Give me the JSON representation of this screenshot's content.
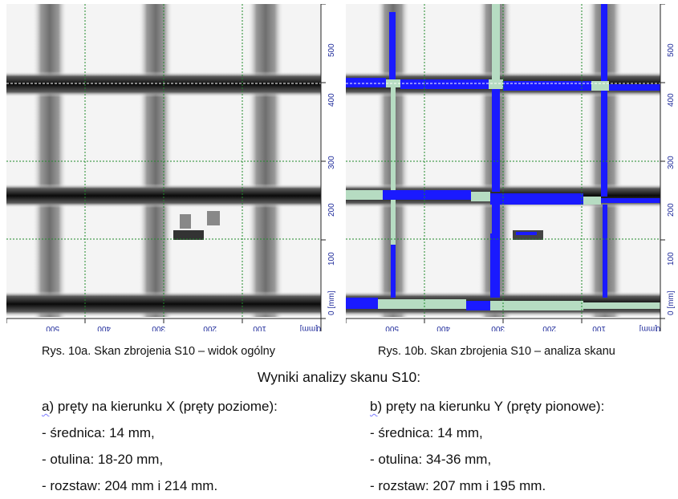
{
  "figures": [
    {
      "id": "a",
      "caption": "Rys. 10a. Skan zbrojenia S10 – widok ogólny",
      "y_ticks": [
        "0 [mm]",
        "100",
        "200",
        "300",
        "400",
        "500"
      ],
      "x_ticks": [
        "[mm]",
        "0",
        "100",
        "200",
        "300",
        "400",
        "500"
      ],
      "analysis_overlay": false
    },
    {
      "id": "b",
      "caption": "Rys. 10b. Skan zbrojenia S10 – analiza skanu",
      "y_ticks": [
        "0 [mm]",
        "100",
        "200",
        "300",
        "400",
        "500"
      ],
      "x_ticks": [
        "[mm]",
        "0",
        "100",
        "200",
        "300",
        "400",
        "500"
      ],
      "analysis_overlay": true
    }
  ],
  "colors": {
    "grid": "#1f8a2a",
    "axis_text": "#1e2a9a",
    "analysis_blue": "#1a1aff",
    "analysis_green": "#b6dcc2"
  },
  "results": {
    "title": "Wyniki analizy skanu S10:",
    "x_direction": {
      "letter": "a",
      "heading_rest": ") pręty na kierunku X (pręty poziome):",
      "items": [
        "- średnica: 14 mm,",
        "- otulina: 18-20 mm,",
        "- rozstaw: 204 mm i 214 mm."
      ]
    },
    "y_direction": {
      "letter": "b",
      "heading_rest": ") pręty na kierunku Y (pręty pionowe):",
      "items": [
        "- średnica: 14 mm,",
        "- otulina: 34-36 mm,",
        "- rozstaw: 207 mm i 195 mm."
      ]
    }
  }
}
